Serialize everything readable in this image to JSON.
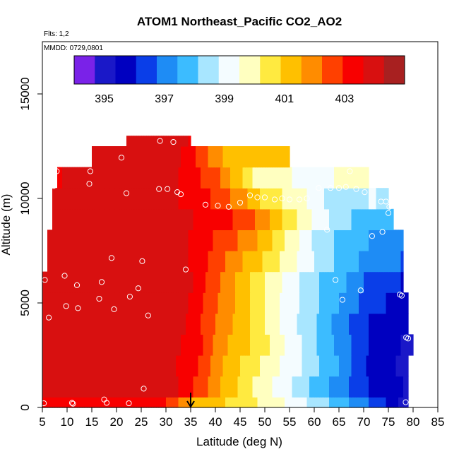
{
  "chart_data": {
    "type": "heatmap",
    "title": "ATOM1 Northeast_Pacific CO2_AO2",
    "annotations": {
      "flights": "Flts: 1,2",
      "dates": "MMDD: 0729,0801"
    },
    "xlabel": "Latitude (deg N)",
    "ylabel": "Altitude (m)",
    "xlim": [
      5,
      85
    ],
    "ylim": [
      0,
      17500
    ],
    "x_ticks": [
      5,
      10,
      15,
      20,
      25,
      30,
      35,
      40,
      45,
      50,
      55,
      60,
      65,
      70,
      75,
      80,
      85
    ],
    "y_ticks": [
      0,
      5000,
      10000,
      15000
    ],
    "grid": false,
    "colorbar": {
      "placement": "top",
      "range": [
        394,
        405
      ],
      "tick_values": [
        395,
        397,
        399,
        401,
        403
      ],
      "colors": [
        "#7a22e8",
        "#1a18c8",
        "#0000c0",
        "#0a3ee8",
        "#1e8cf5",
        "#3cbcff",
        "#a8e6ff",
        "#f4fcff",
        "#ffffc0",
        "#ffea40",
        "#ffc000",
        "#ff8c00",
        "#ff4000",
        "#f80000",
        "#d81010",
        "#a82020"
      ]
    },
    "marker": {
      "latitude": 35,
      "altitude": 0,
      "shape": "down-arrow"
    },
    "rows": [
      {
        "alt_range": [
          0,
          500
        ],
        "lat_range": [
          5,
          79
        ],
        "anchors": [
          [
            5,
            403.6
          ],
          [
            25,
            403.4
          ],
          [
            30,
            403.0
          ],
          [
            35,
            401.5
          ],
          [
            45,
            400.6
          ],
          [
            55,
            399.4
          ],
          [
            65,
            397.8
          ],
          [
            73,
            396.4
          ],
          [
            79,
            394.8
          ]
        ]
      },
      {
        "alt_range": [
          500,
          1500
        ],
        "lat_range": [
          5,
          79
        ],
        "anchors": [
          [
            5,
            403.8
          ],
          [
            25,
            404.0
          ],
          [
            33,
            403.6
          ],
          [
            40,
            401.8
          ],
          [
            47,
            400.3
          ],
          [
            55,
            398.9
          ],
          [
            63,
            397.4
          ],
          [
            72,
            395.9
          ],
          [
            79,
            395.3
          ]
        ]
      },
      {
        "alt_range": [
          1500,
          2500
        ],
        "lat_range": [
          5,
          79
        ],
        "anchors": [
          [
            5,
            403.8
          ],
          [
            28,
            404.1
          ],
          [
            35,
            403.3
          ],
          [
            42,
            401.4
          ],
          [
            50,
            400.0
          ],
          [
            58,
            398.7
          ],
          [
            65,
            397.4
          ],
          [
            72,
            395.7
          ],
          [
            79,
            395.2
          ]
        ]
      },
      {
        "alt_range": [
          2500,
          3500
        ],
        "lat_range": [
          5,
          80
        ],
        "anchors": [
          [
            5,
            403.9
          ],
          [
            28,
            404.2
          ],
          [
            36,
            403.3
          ],
          [
            42,
            401.6
          ],
          [
            50,
            400.4
          ],
          [
            58,
            398.7
          ],
          [
            65,
            397.2
          ],
          [
            72,
            395.9
          ],
          [
            79,
            395.2
          ]
        ]
      },
      {
        "alt_range": [
          3500,
          4500
        ],
        "lat_range": [
          5,
          79
        ],
        "anchors": [
          [
            5,
            403.9
          ],
          [
            27,
            404.1
          ],
          [
            33,
            403.8
          ],
          [
            40,
            402.2
          ],
          [
            47,
            400.9
          ],
          [
            55,
            399.1
          ],
          [
            62,
            397.8
          ],
          [
            68,
            396.5
          ],
          [
            74,
            395.6
          ],
          [
            79,
            395.4
          ]
        ]
      },
      {
        "alt_range": [
          4500,
          5500
        ],
        "lat_range": [
          5,
          79
        ],
        "anchors": [
          [
            5,
            403.9
          ],
          [
            27,
            404.2
          ],
          [
            33,
            403.9
          ],
          [
            40,
            402.4
          ],
          [
            46,
            401.1
          ],
          [
            52,
            399.7
          ],
          [
            58,
            398.6
          ],
          [
            64,
            397.6
          ],
          [
            70,
            396.6
          ],
          [
            76,
            395.9
          ],
          [
            79,
            395.6
          ]
        ]
      },
      {
        "alt_range": [
          5500,
          6500
        ],
        "lat_range": [
          5,
          78
        ],
        "anchors": [
          [
            5,
            403.8
          ],
          [
            28,
            404.2
          ],
          [
            35,
            403.7
          ],
          [
            42,
            402.0
          ],
          [
            50,
            400.2
          ],
          [
            56,
            399.0
          ],
          [
            61,
            398.1
          ],
          [
            66,
            397.5
          ],
          [
            70,
            396.7
          ],
          [
            75,
            396.3
          ],
          [
            78,
            396.0
          ]
        ]
      },
      {
        "alt_range": [
          6500,
          7500
        ],
        "lat_range": [
          6,
          78
        ],
        "anchors": [
          [
            6,
            403.8
          ],
          [
            27,
            404.0
          ],
          [
            35,
            403.6
          ],
          [
            42,
            402.2
          ],
          [
            50,
            400.8
          ],
          [
            55,
            399.8
          ],
          [
            60,
            398.8
          ],
          [
            65,
            397.9
          ],
          [
            70,
            397.3
          ],
          [
            75,
            396.9
          ],
          [
            78,
            396.7
          ]
        ]
      },
      {
        "alt_range": [
          7500,
          8500
        ],
        "lat_range": [
          6,
          78
        ],
        "anchors": [
          [
            6,
            403.8
          ],
          [
            27,
            404.0
          ],
          [
            35,
            403.6
          ],
          [
            42,
            402.6
          ],
          [
            48,
            401.7
          ],
          [
            52,
            400.7
          ],
          [
            56,
            399.7
          ],
          [
            60,
            398.7
          ],
          [
            65,
            398.0
          ],
          [
            70,
            397.5
          ],
          [
            75,
            397.1
          ],
          [
            78,
            396.9
          ]
        ]
      },
      {
        "alt_range": [
          8500,
          9500
        ],
        "lat_range": [
          7,
          76
        ],
        "anchors": [
          [
            7,
            403.8
          ],
          [
            27,
            404.0
          ],
          [
            36,
            403.6
          ],
          [
            44,
            402.9
          ],
          [
            50,
            401.9
          ],
          [
            55,
            400.5
          ],
          [
            60,
            399.4
          ],
          [
            65,
            398.4
          ],
          [
            70,
            397.8
          ],
          [
            76,
            397.5
          ]
        ]
      },
      {
        "alt_range": [
          9500,
          10500
        ],
        "lat_range": [
          7,
          75
        ],
        "anchors": [
          [
            7,
            403.8
          ],
          [
            27,
            404.1
          ],
          [
            34,
            403.5
          ],
          [
            40,
            402.8
          ],
          [
            46,
            401.7
          ],
          [
            50,
            400.6
          ],
          [
            55,
            400.0
          ],
          [
            58,
            399.6
          ],
          [
            62,
            398.8
          ],
          [
            67,
            398.4
          ],
          [
            72,
            398.9
          ],
          [
            75,
            398.5
          ]
        ]
      },
      {
        "alt_range": [
          10500,
          11500
        ],
        "lat_range": [
          8,
          71
        ],
        "anchors": [
          [
            8,
            403.6
          ],
          [
            22,
            403.9
          ],
          [
            30,
            404.0
          ],
          [
            35,
            403.2
          ],
          [
            40,
            402.5
          ],
          [
            44,
            401.3
          ],
          [
            48,
            400.0
          ],
          [
            53,
            399.7
          ],
          [
            58,
            399.3
          ],
          [
            63,
            399.4
          ],
          [
            68,
            399.8
          ],
          [
            71,
            399.6
          ]
        ]
      },
      {
        "alt_range": [
          11500,
          12500
        ],
        "lat_range": [
          15,
          55
        ],
        "anchors": [
          [
            15,
            403.9
          ],
          [
            22,
            404.1
          ],
          [
            30,
            404.2
          ],
          [
            35,
            403.3
          ],
          [
            38,
            402.4
          ],
          [
            42,
            401.4
          ],
          [
            46,
            401.0
          ],
          [
            50,
            401.0
          ],
          [
            55,
            401.2
          ]
        ]
      },
      {
        "alt_range": [
          12500,
          13000
        ],
        "lat_range": [
          22,
          35
        ],
        "anchors": [
          [
            22,
            403.8
          ],
          [
            27,
            404.0
          ],
          [
            32,
            404.0
          ],
          [
            35,
            403.5
          ]
        ]
      }
    ],
    "observations": [
      [
        5.3,
        200
      ],
      [
        11.0,
        220
      ],
      [
        11.2,
        180
      ],
      [
        17.5,
        380
      ],
      [
        18.0,
        220
      ],
      [
        22.5,
        200
      ],
      [
        25.5,
        900
      ],
      [
        5.5,
        6100
      ],
      [
        6.3,
        4300
      ],
      [
        9.5,
        6300
      ],
      [
        9.8,
        4850
      ],
      [
        12.0,
        5850
      ],
      [
        12.2,
        4750
      ],
      [
        16.5,
        5200
      ],
      [
        17.0,
        6000
      ],
      [
        19.0,
        7150
      ],
      [
        19.5,
        4700
      ],
      [
        22.7,
        5300
      ],
      [
        24.4,
        5700
      ],
      [
        25.2,
        7000
      ],
      [
        26.4,
        4400
      ],
      [
        34.0,
        6600
      ],
      [
        7.3,
        10600
      ],
      [
        7.9,
        11300
      ],
      [
        14.5,
        10700
      ],
      [
        14.7,
        11300
      ],
      [
        21.0,
        11950
      ],
      [
        22.0,
        10250
      ],
      [
        28.8,
        12750
      ],
      [
        28.6,
        10450
      ],
      [
        30.3,
        10450
      ],
      [
        31.5,
        12700
      ],
      [
        32.3,
        10300
      ],
      [
        33.0,
        10200
      ],
      [
        38.0,
        9700
      ],
      [
        40.5,
        9650
      ],
      [
        42.7,
        9600
      ],
      [
        45.0,
        9800
      ],
      [
        47.0,
        10150
      ],
      [
        48.5,
        10050
      ],
      [
        50.0,
        10050
      ],
      [
        52.0,
        9950
      ],
      [
        53.5,
        10000
      ],
      [
        55.0,
        9950
      ],
      [
        57.0,
        9950
      ],
      [
        58.5,
        10000
      ],
      [
        60.9,
        10500
      ],
      [
        62.6,
        8500
      ],
      [
        63.3,
        10500
      ],
      [
        64.3,
        6100
      ],
      [
        65.0,
        10500
      ],
      [
        65.7,
        5150
      ],
      [
        66.4,
        10550
      ],
      [
        67.2,
        11300
      ],
      [
        68.5,
        10450
      ],
      [
        69.4,
        5600
      ],
      [
        70.2,
        10300
      ],
      [
        71.7,
        8200
      ],
      [
        73.5,
        9850
      ],
      [
        73.8,
        8400
      ],
      [
        74.5,
        9850
      ],
      [
        75.2,
        9600
      ],
      [
        75.0,
        9300
      ],
      [
        77.3,
        5400
      ],
      [
        77.7,
        5350
      ],
      [
        78.6,
        3350
      ],
      [
        79.0,
        3300
      ],
      [
        78.5,
        250
      ]
    ]
  }
}
